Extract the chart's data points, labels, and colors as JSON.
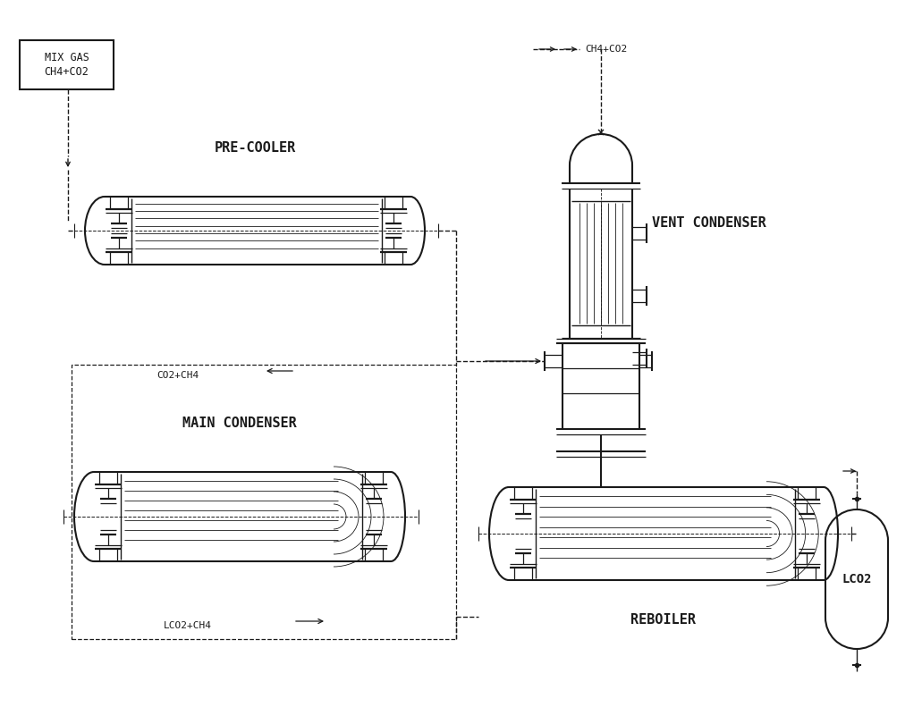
{
  "bg_color": "#ffffff",
  "lc": "#1a1a1a",
  "labels": {
    "mix_gas": "MIX GAS\nCH4+CO2",
    "pre_cooler": "PRE-COOLER",
    "main_condenser": "MAIN CONDENSER",
    "vent_condenser": "VENT CONDENSER",
    "reboiler": "REBOILER",
    "lco2": "LCO2",
    "ch4co2": "CH4+CO2",
    "co2ch4": "CO2+CH4",
    "lco2ch4": "LCO2+CH4"
  }
}
